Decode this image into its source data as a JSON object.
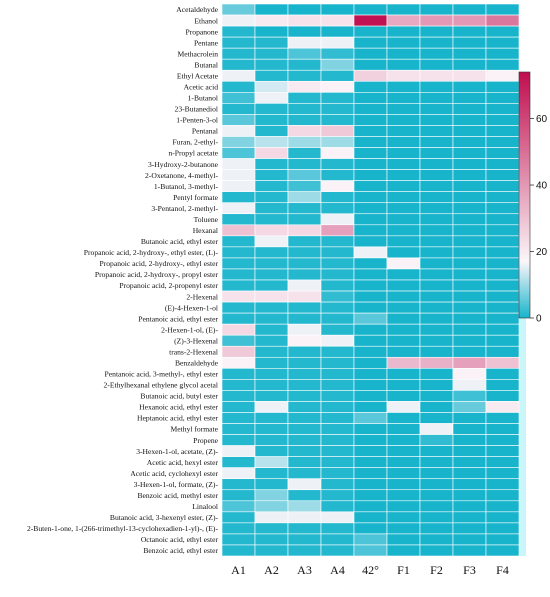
{
  "chart_data": {
    "type": "heatmap",
    "title": "",
    "xlabel": "",
    "ylabel": "",
    "columns": [
      "A1",
      "A2",
      "A3",
      "A4",
      "42°",
      "F1",
      "F2",
      "F3",
      "F4"
    ],
    "rows": [
      "Acetaldehyde",
      "Ethanol",
      "Propanone",
      "Pentane",
      "Methacrolein",
      "Butanal",
      "Ethyl Acetate",
      "Acetic acid",
      "1-Butanol",
      "23-Butanediol",
      "1-Penten-3-ol",
      "Pentanal",
      "Furan, 2-ethyl-",
      "n-Propyl acetate",
      "3-Hydroxy-2-butanone",
      "2-Oxetanone, 4-methyl-",
      "1-Butanol, 3-methyl-",
      "Pentyl formate",
      "3-Pentanol, 2-methyl-",
      "Toluene",
      "Hexanal",
      "Butanoic acid, ethyl ester",
      "Propanoic acid, 2-hydroxy-, ethyl ester, (L)-",
      "Propanoic acid, 2-hydroxy-, ethyl ester",
      "Propanoic acid, 2-hydroxy-, propyl ester",
      "Propanoic acid, 2-propenyl ester",
      "2-Hexenal",
      "(E)-4-Hexen-1-ol",
      "Pentanoic acid, ethyl ester",
      "2-Hexen-1-ol, (E)-",
      "(Z)-3-Hexenal",
      "trans-2-Hexenal",
      "Benzaldehyde",
      "Pentanoic acid, 3-methyl-, ethyl ester",
      "2-Ethylhexanal ethylene glycol acetal",
      "Butanoic acid, butyl ester",
      "Hexanoic acid, ethyl ester",
      "Heptanoic acid, ethyl ester",
      "Methyl formate",
      "Propene",
      "3-Hexen-1-ol, acetate, (Z)-",
      "Acetic acid, hexyl ester",
      "Acetic acid, cyclohexyl ester",
      "3-Hexen-1-ol, formate, (Z)-",
      "Benzoic acid, methyl ester",
      "Linalool",
      "Butanoic acid, 3-hexenyl ester, (Z)-",
      "2-Buten-1-one, 1-(266-trimethyl-13-cyclohexadien-1-yl)-, (E)-",
      "Octanoic acid, ethyl ester",
      "Benzoic acid, ethyl ester"
    ],
    "values": [
      [
        6,
        0,
        0,
        0,
        0,
        0,
        0,
        0,
        0
      ],
      [
        16,
        20,
        22,
        22,
        73,
        36,
        40,
        40,
        48
      ],
      [
        1,
        0,
        0,
        0,
        0,
        0,
        0,
        0,
        0
      ],
      [
        1,
        1,
        16,
        16,
        0,
        0,
        0,
        0,
        0
      ],
      [
        1,
        1,
        4,
        2,
        0,
        0,
        0,
        0,
        0
      ],
      [
        1,
        1,
        1,
        8,
        0,
        0,
        0,
        0,
        0
      ],
      [
        16,
        1,
        1,
        1,
        26,
        22,
        22,
        22,
        18
      ],
      [
        1,
        14,
        20,
        18,
        0,
        0,
        0,
        0,
        0
      ],
      [
        3,
        16,
        1,
        1,
        0,
        0,
        0,
        0,
        0
      ],
      [
        1,
        1,
        1,
        1,
        0,
        0,
        0,
        0,
        0
      ],
      [
        5,
        1,
        1,
        1,
        0,
        0,
        0,
        0,
        0
      ],
      [
        16,
        1,
        24,
        28,
        0,
        0,
        0,
        0,
        0
      ],
      [
        8,
        12,
        10,
        10,
        0,
        0,
        0,
        0,
        0
      ],
      [
        4,
        24,
        1,
        18,
        0,
        0,
        0,
        0,
        0
      ],
      [
        16,
        1,
        1,
        1,
        0,
        0,
        0,
        0,
        0
      ],
      [
        16,
        1,
        5,
        1,
        0,
        0,
        0,
        0,
        0
      ],
      [
        16,
        1,
        3,
        18,
        0,
        0,
        0,
        0,
        0
      ],
      [
        1,
        1,
        10,
        1,
        0,
        0,
        0,
        0,
        0
      ],
      [
        16,
        1,
        1,
        1,
        0,
        0,
        0,
        0,
        0
      ],
      [
        1,
        1,
        1,
        16,
        0,
        0,
        0,
        0,
        0
      ],
      [
        30,
        24,
        24,
        38,
        0,
        0,
        0,
        0,
        0
      ],
      [
        1,
        16,
        1,
        1,
        0,
        0,
        0,
        0,
        0
      ],
      [
        1,
        1,
        1,
        1,
        16,
        0,
        0,
        0,
        0
      ],
      [
        1,
        1,
        1,
        1,
        0,
        18,
        0,
        0,
        0
      ],
      [
        1,
        1,
        1,
        1,
        0,
        0,
        0,
        0,
        0
      ],
      [
        1,
        1,
        16,
        1,
        0,
        0,
        0,
        0,
        0
      ],
      [
        22,
        22,
        22,
        2,
        0,
        0,
        0,
        0,
        0
      ],
      [
        1,
        1,
        1,
        1,
        0,
        0,
        0,
        0,
        0
      ],
      [
        1,
        1,
        1,
        1,
        5,
        0,
        0,
        0,
        0
      ],
      [
        24,
        1,
        16,
        1,
        0,
        0,
        0,
        0,
        0
      ],
      [
        3,
        1,
        18,
        16,
        0,
        0,
        0,
        0,
        0
      ],
      [
        28,
        1,
        1,
        1,
        0,
        0,
        0,
        0,
        0
      ],
      [
        18,
        1,
        1,
        1,
        0,
        32,
        34,
        38,
        30
      ],
      [
        1,
        1,
        1,
        1,
        0,
        0,
        0,
        18,
        0
      ],
      [
        1,
        1,
        1,
        1,
        0,
        0,
        0,
        16,
        0
      ],
      [
        1,
        1,
        1,
        1,
        0,
        0,
        0,
        3,
        0
      ],
      [
        1,
        16,
        1,
        1,
        0,
        16,
        0,
        6,
        20
      ],
      [
        1,
        1,
        1,
        1,
        5,
        0,
        0,
        0,
        0
      ],
      [
        1,
        1,
        1,
        1,
        0,
        0,
        16,
        0,
        0
      ],
      [
        1,
        1,
        1,
        1,
        0,
        0,
        2,
        0,
        0
      ],
      [
        16,
        1,
        1,
        1,
        0,
        0,
        0,
        0,
        0
      ],
      [
        1,
        12,
        1,
        1,
        0,
        0,
        0,
        0,
        0
      ],
      [
        16,
        1,
        1,
        1,
        0,
        0,
        0,
        0,
        0
      ],
      [
        1,
        1,
        16,
        1,
        0,
        0,
        0,
        0,
        0
      ],
      [
        1,
        8,
        1,
        1,
        0,
        0,
        0,
        0,
        0
      ],
      [
        4,
        8,
        10,
        1,
        0,
        0,
        0,
        0,
        0
      ],
      [
        1,
        16,
        16,
        16,
        0,
        0,
        0,
        0,
        0
      ],
      [
        1,
        1,
        1,
        1,
        0,
        0,
        0,
        0,
        0
      ],
      [
        1,
        1,
        1,
        1,
        4,
        0,
        0,
        0,
        0
      ],
      [
        1,
        1,
        1,
        1,
        4,
        0,
        0,
        0,
        0
      ]
    ],
    "colorbar": {
      "min": 0,
      "max": 74,
      "ticks": [
        0,
        20,
        40,
        60
      ]
    },
    "colors": {
      "low": "#17b4cc",
      "mid": "#fbf6fa",
      "high": "#c00d4f",
      "bg_tint": "#c9f6f8",
      "grid": "#ffffff"
    }
  }
}
